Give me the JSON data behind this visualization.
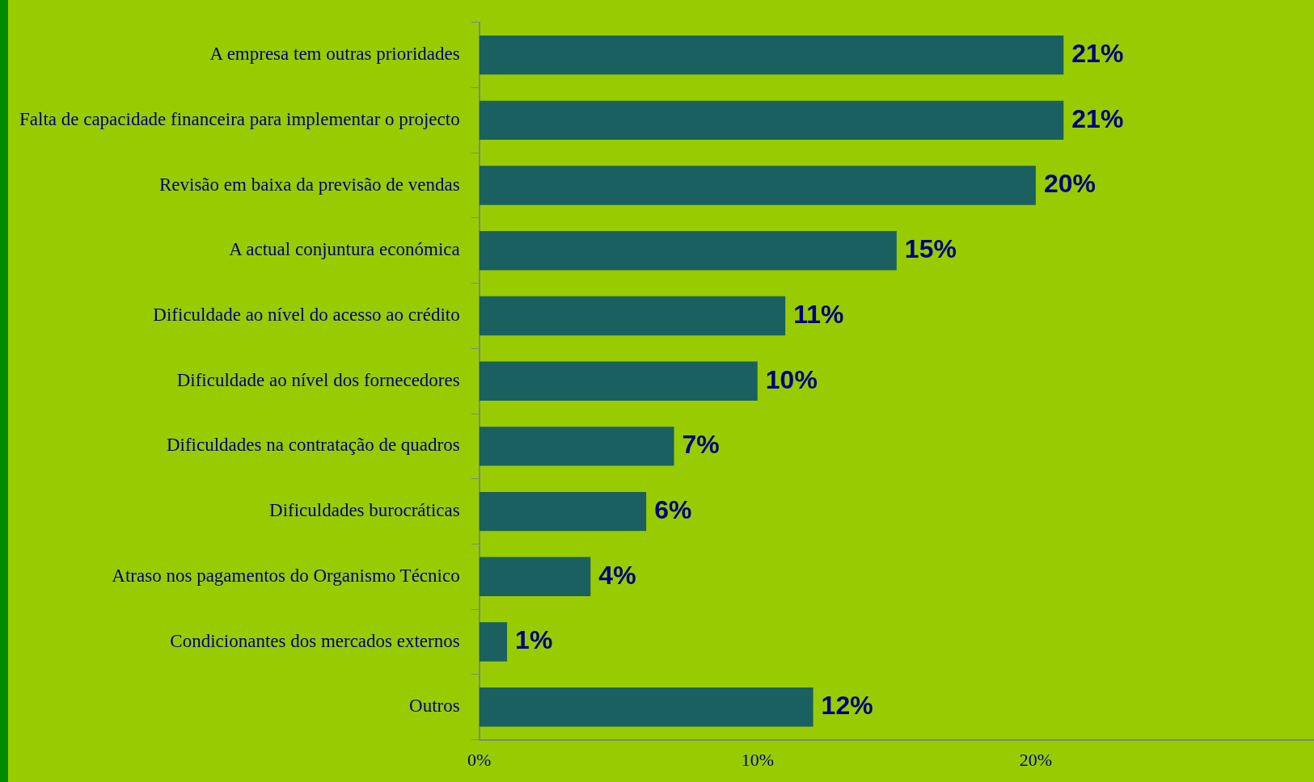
{
  "chart_data": {
    "type": "bar",
    "orientation": "horizontal",
    "categories": [
      "A empresa tem outras prioridades",
      "Falta de capacidade financeira para implementar o projecto",
      "Revisão em baixa da previsão de vendas",
      "A actual conjuntura económica",
      "Dificuldade ao nível do acesso ao crédito",
      "Dificuldade ao nível dos fornecedores",
      "Dificuldades na contratação de quadros",
      "Dificuldades burocráticas",
      "Atraso nos pagamentos do Organismo Técnico",
      "Condicionantes dos mercados externos",
      "Outros"
    ],
    "values": [
      21,
      21,
      20,
      15,
      11,
      10,
      7,
      6,
      4,
      1,
      12
    ],
    "color": "#1a6060",
    "xlim": [
      0,
      30
    ],
    "xticks": [
      {
        "value": 0,
        "label": "0%"
      },
      {
        "value": 10,
        "label": "10%"
      },
      {
        "value": 20,
        "label": "20%"
      }
    ],
    "value_labels": [
      "21%",
      "21%",
      "20%",
      "15%",
      "11%",
      "10%",
      "7%",
      "6%",
      "4%",
      "1%",
      "12%"
    ],
    "grid": false,
    "legend": false
  }
}
